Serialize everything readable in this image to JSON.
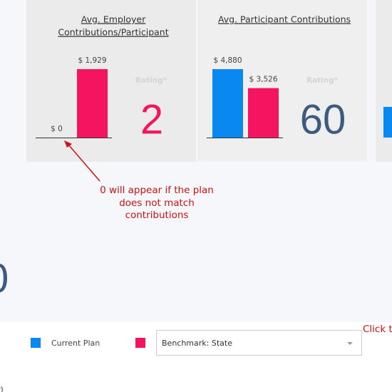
{
  "cards": [
    {
      "title_lines": [
        "Avg. Employer",
        "Contributions/Participant"
      ],
      "rating_label": "Rating*",
      "rating": 2,
      "rating_color": "#f5145f",
      "values": [
        0,
        1929
      ],
      "value_labels": [
        "$ 0",
        "$ 1,929"
      ],
      "colors": [
        "#0a88f2",
        "#f5145f"
      ],
      "background": "#ebebeb"
    },
    {
      "title_lines": [
        "Avg. Participant Contributions"
      ],
      "rating_label": "Rating*",
      "rating": 60,
      "rating_color": "#3d5a80",
      "values": [
        4880,
        3526
      ],
      "value_labels": [
        "$ 4,880",
        "$ 3,526"
      ],
      "colors": [
        "#0a88f2",
        "#f5145f"
      ],
      "background": "#efefef"
    }
  ],
  "side_value": 0,
  "annotation": {
    "lines": [
      "0 will appear if the plan",
      "does not match",
      "contributions"
    ]
  },
  "legend": {
    "current_label": "Current Plan",
    "current_color": "#0a88f2",
    "benchmark_color": "#f5145f"
  },
  "dropdown": {
    "selected": "Benchmark: State"
  },
  "click_hint": "Click t",
  "footer_fragment": "r)"
}
